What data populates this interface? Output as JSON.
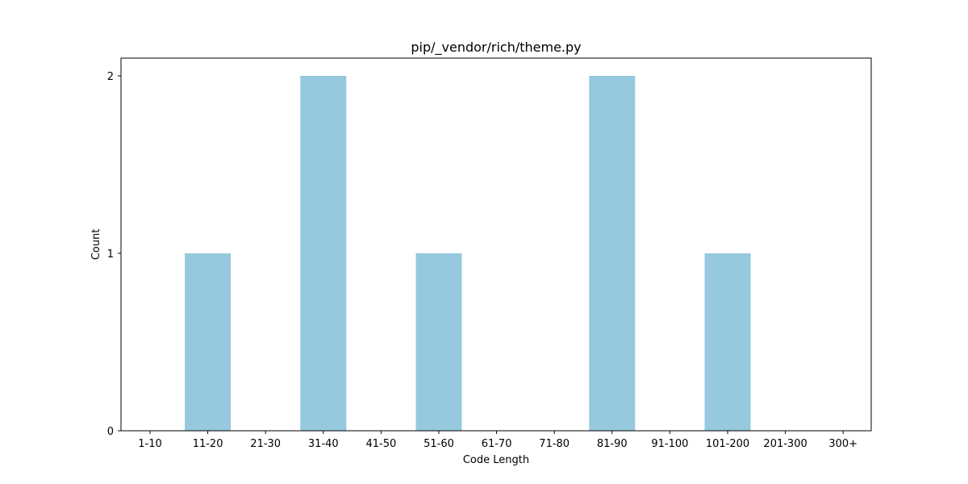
{
  "colors": {
    "bar": "#96c9dd",
    "axis": "#000000",
    "background": "#ffffff"
  },
  "chart_data": {
    "type": "bar",
    "title": "pip/_vendor/rich/theme.py",
    "xlabel": "Code Length",
    "ylabel": "Count",
    "categories": [
      "1-10",
      "11-20",
      "21-30",
      "31-40",
      "41-50",
      "51-60",
      "61-70",
      "71-80",
      "81-90",
      "91-100",
      "101-200",
      "201-300",
      "300+"
    ],
    "values": [
      0,
      1,
      0,
      2,
      0,
      1,
      0,
      0,
      2,
      0,
      1,
      0,
      0
    ],
    "ylim": [
      0,
      2.1
    ],
    "yticks": [
      0,
      1,
      2
    ],
    "grid": false,
    "legend": "none"
  }
}
